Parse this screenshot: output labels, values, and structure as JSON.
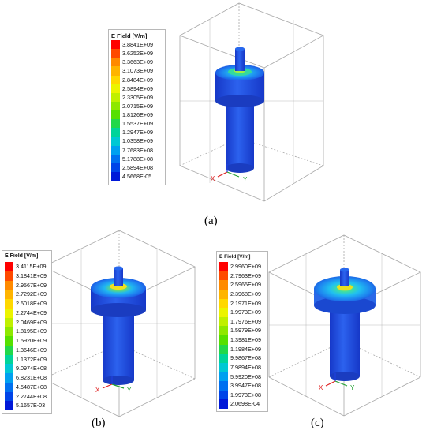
{
  "figures": [
    {
      "caption": "(a)",
      "legend": {
        "title": "E Field [V/m]",
        "labels": [
          "3.8841E+09",
          "3.6252E+09",
          "3.3663E+09",
          "3.1073E+09",
          "2.8484E+09",
          "2.5894E+09",
          "2.3305E+09",
          "2.0715E+09",
          "1.8126E+09",
          "1.5537E+09",
          "1.2947E+09",
          "1.0358E+09",
          "7.7683E+08",
          "5.1788E+08",
          "2.5894E+08",
          "4.5668E-05"
        ]
      },
      "axes": {
        "x": "X",
        "y": "Y"
      }
    },
    {
      "caption": "(b)",
      "legend": {
        "title": "E Field [V/m]",
        "labels": [
          "3.4115E+09",
          "3.1841E+09",
          "2.9567E+09",
          "2.7292E+09",
          "2.5018E+09",
          "2.2744E+09",
          "2.0469E+09",
          "1.8195E+09",
          "1.5920E+09",
          "1.3646E+09",
          "1.1372E+09",
          "9.0974E+08",
          "6.8231E+08",
          "4.5487E+08",
          "2.2744E+08",
          "5.1657E-03"
        ]
      },
      "axes": {
        "x": "X",
        "y": "Y"
      }
    },
    {
      "caption": "(c)",
      "legend": {
        "title": "E Field [V/m]",
        "labels": [
          "2.9960E+09",
          "2.7963E+09",
          "2.5965E+09",
          "2.3968E+09",
          "2.1971E+09",
          "1.9973E+09",
          "1.7976E+09",
          "1.5979E+09",
          "1.3981E+09",
          "1.1984E+09",
          "9.9867E+08",
          "7.9894E+08",
          "5.9920E+08",
          "3.9947E+08",
          "1.9973E+08",
          "2.0698E-04"
        ]
      },
      "axes": {
        "x": "X",
        "y": "Y"
      }
    }
  ],
  "colors": {
    "scale": [
      "#ff0000",
      "#ff4a00",
      "#ff8a00",
      "#ffb400",
      "#ffd800",
      "#ecf400",
      "#c0f000",
      "#8ee800",
      "#56e000",
      "#22d84a",
      "#00d49a",
      "#00c8d4",
      "#00a0f0",
      "#0070f0",
      "#0044e8",
      "#0018d8"
    ],
    "body_blue": "#2a5ae0",
    "body_dark": "#1a3cc0",
    "box_line": "#a9a9a9"
  }
}
